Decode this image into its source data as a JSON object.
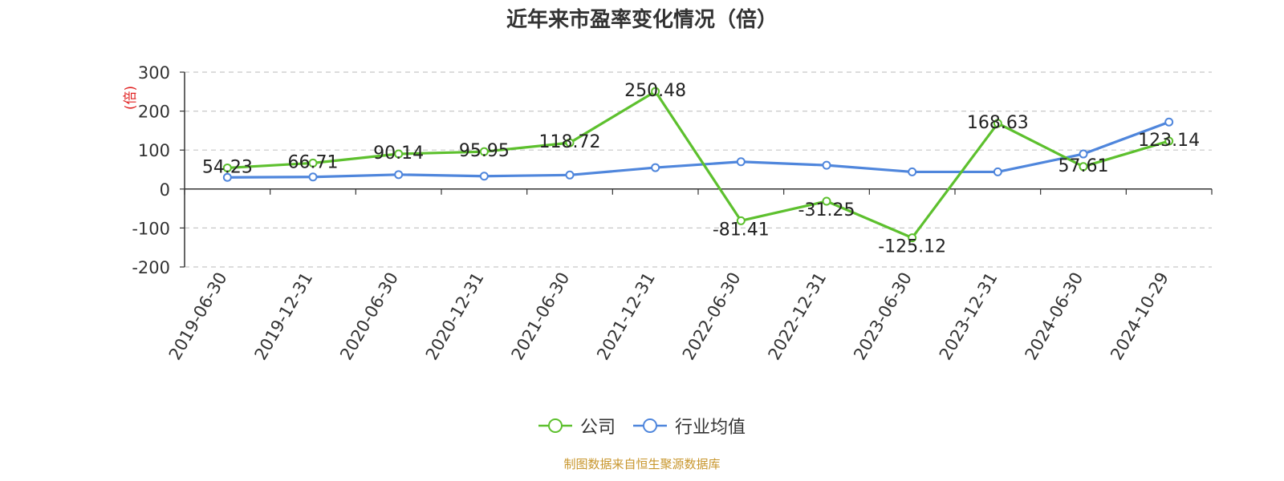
{
  "chart_data": {
    "type": "line",
    "title": "近年来市盈率变化情况（倍）",
    "ylabel": "(倍)",
    "xlabel": "",
    "categories": [
      "2019-06-30",
      "2019-12-31",
      "2020-06-30",
      "2020-12-31",
      "2021-06-30",
      "2021-12-31",
      "2022-06-30",
      "2022-12-31",
      "2023-06-30",
      "2023-12-31",
      "2024-06-30",
      "2024-10-29"
    ],
    "ylim": [
      -200,
      300
    ],
    "yticks": [
      -200,
      -100,
      0,
      100,
      200,
      300
    ],
    "grid": true,
    "legend_position": "bottom-center",
    "series": [
      {
        "name": "公司",
        "color": "#5dc02e",
        "show_labels": true,
        "values": [
          54.23,
          66.71,
          90.14,
          95.95,
          118.72,
          250.48,
          -81.41,
          -31.25,
          -125.12,
          168.63,
          57.61,
          123.14
        ]
      },
      {
        "name": "行业均值",
        "color": "#4f86dc",
        "show_labels": false,
        "values": [
          30,
          31,
          37,
          33,
          36,
          55,
          70,
          61,
          44,
          44,
          90,
          172
        ]
      }
    ]
  },
  "footer": "制图数据来自恒生聚源数据库"
}
